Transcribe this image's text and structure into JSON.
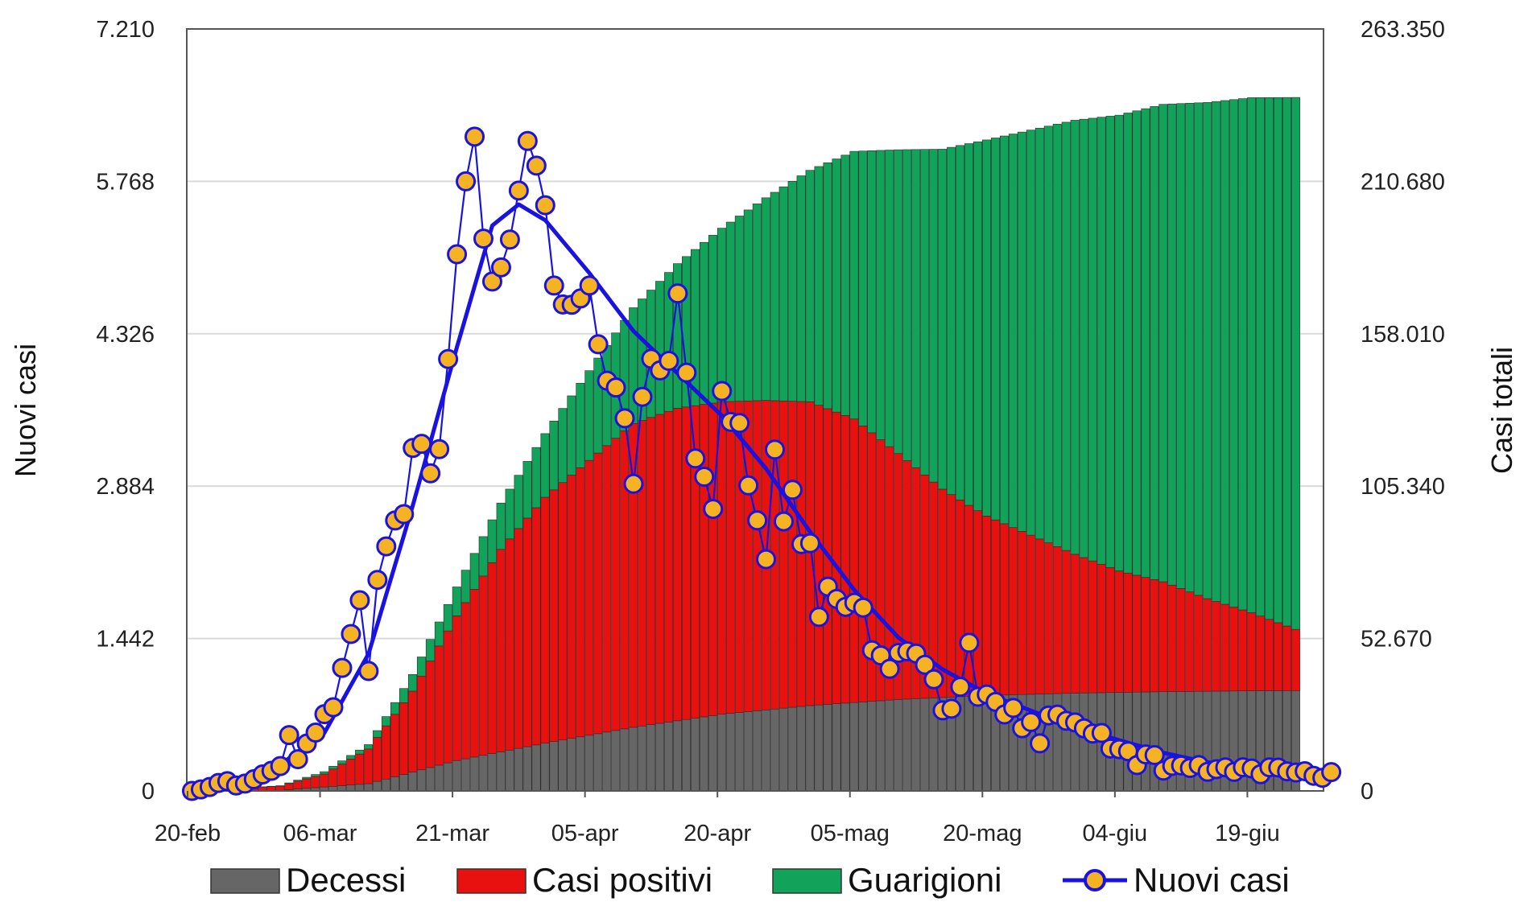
{
  "chart_data": {
    "type": "bar",
    "stacked": true,
    "x_start": "20-feb",
    "x_tick_labels": [
      "20-feb",
      "06-mar",
      "21-mar",
      "05-apr",
      "20-apr",
      "05-mag",
      "20-mag",
      "04-giu",
      "19-giu"
    ],
    "y_left": {
      "label": "Nuovi casi",
      "ticks": [
        "0",
        "1.442",
        "2.884",
        "4.326",
        "5.768",
        "7.210"
      ],
      "ylim": [
        0,
        7210
      ]
    },
    "y_right": {
      "label": "Casi totali",
      "ticks": [
        "0",
        "52.670",
        "105.340",
        "158.010",
        "210.680",
        "263.350"
      ],
      "ylim": [
        0,
        263350
      ]
    },
    "legend": {
      "placement": "bottom",
      "items": [
        {
          "label": "Decessi",
          "color": "#666666",
          "kind": "bar"
        },
        {
          "label": "Casi positivi",
          "color": "#e8110f",
          "kind": "bar"
        },
        {
          "label": "Guarigioni",
          "color": "#12a35a",
          "kind": "bar"
        },
        {
          "label": "Nuovi casi",
          "color": "#1a12e0",
          "marker_color": "#f5b324",
          "kind": "line"
        }
      ]
    },
    "grid": "horizontal",
    "series": [
      {
        "name": "Decessi",
        "axis": "right",
        "knots_day_value": [
          [
            0,
            0
          ],
          [
            10,
            200
          ],
          [
            20,
            2500
          ],
          [
            30,
            10500
          ],
          [
            40,
            16500
          ],
          [
            50,
            22000
          ],
          [
            60,
            26500
          ],
          [
            70,
            29500
          ],
          [
            80,
            31600
          ],
          [
            90,
            33000
          ],
          [
            100,
            33800
          ],
          [
            110,
            34300
          ],
          [
            120,
            34600
          ],
          [
            126,
            34700
          ]
        ]
      },
      {
        "name": "Casi positivi",
        "axis": "right",
        "knots_day_value": [
          [
            0,
            0
          ],
          [
            10,
            1500
          ],
          [
            15,
            4500
          ],
          [
            20,
            12000
          ],
          [
            25,
            28000
          ],
          [
            30,
            50000
          ],
          [
            35,
            70000
          ],
          [
            40,
            85000
          ],
          [
            45,
            95000
          ],
          [
            50,
            105000
          ],
          [
            55,
            108000
          ],
          [
            60,
            108000
          ],
          [
            65,
            107000
          ],
          [
            70,
            105000
          ],
          [
            75,
            98000
          ],
          [
            80,
            85000
          ],
          [
            85,
            72000
          ],
          [
            90,
            62000
          ],
          [
            95,
            55000
          ],
          [
            100,
            48000
          ],
          [
            105,
            42000
          ],
          [
            110,
            38000
          ],
          [
            115,
            32000
          ],
          [
            120,
            27000
          ],
          [
            126,
            20000
          ]
        ]
      },
      {
        "name": "Guarigioni",
        "axis": "right",
        "knots_day_value": [
          [
            0,
            0
          ],
          [
            10,
            100
          ],
          [
            20,
            1500
          ],
          [
            30,
            10000
          ],
          [
            40,
            22000
          ],
          [
            50,
            40000
          ],
          [
            60,
            60000
          ],
          [
            70,
            80000
          ],
          [
            80,
            105000
          ],
          [
            90,
            130000
          ],
          [
            100,
            150000
          ],
          [
            110,
            165000
          ],
          [
            120,
            178000
          ],
          [
            126,
            185000
          ]
        ]
      },
      {
        "name": "Nuovi casi",
        "axis": "left",
        "daily": [
          0,
          14,
          37,
          75,
          92,
          51,
          69,
          110,
          156,
          190,
          235,
          528,
          300,
          448,
          552,
          726,
          792,
          1164,
          1485,
          1804,
          1134,
          1997,
          2314,
          2559,
          2619,
          3245,
          3284,
          3005,
          3234,
          4087,
          5078,
          5768,
          6191,
          5226,
          4820,
          4954,
          5217,
          5681,
          6150,
          5917,
          5542,
          4782,
          4603,
          4600,
          4660,
          4782,
          4226,
          3882,
          3817,
          3526,
          2906,
          3729,
          4089,
          3979,
          4069,
          4708,
          3958,
          3146,
          2973,
          2668,
          3784,
          3492,
          3481,
          2891,
          2560,
          2192,
          3230,
          2550,
          2849,
          2335,
          2344,
          1646,
          1933,
          1817,
          1741,
          1781,
          1734,
          1330,
          1282,
          1155,
          1306,
          1321,
          1300,
          1193,
          1056,
          762,
          778,
          985,
          1402,
          891,
          913,
          842,
          723,
          785,
          593,
          652,
          450,
          714,
          722,
          663,
          648,
          592,
          542,
          548,
          401,
          395,
          375,
          244,
          345,
          339,
          192,
          237,
          241,
          217,
          245,
          181,
          206,
          223,
          180,
          224,
          212,
          158,
          223,
          221,
          185,
          174,
          187,
          143,
          124,
          178
        ]
      },
      {
        "name": "Nuovi casi (media)",
        "axis": "left",
        "knots_day_value": [
          [
            0,
            20
          ],
          [
            5,
            80
          ],
          [
            10,
            250
          ],
          [
            15,
            550
          ],
          [
            20,
            1300
          ],
          [
            25,
            2700
          ],
          [
            30,
            4200
          ],
          [
            34,
            5350
          ],
          [
            37,
            5550
          ],
          [
            40,
            5400
          ],
          [
            45,
            4900
          ],
          [
            50,
            4350
          ],
          [
            55,
            3950
          ],
          [
            60,
            3550
          ],
          [
            65,
            3050
          ],
          [
            70,
            2450
          ],
          [
            75,
            1900
          ],
          [
            80,
            1450
          ],
          [
            85,
            1150
          ],
          [
            90,
            920
          ],
          [
            95,
            760
          ],
          [
            100,
            600
          ],
          [
            105,
            480
          ],
          [
            110,
            360
          ],
          [
            115,
            270
          ],
          [
            120,
            230
          ],
          [
            126,
            190
          ]
        ]
      }
    ]
  }
}
